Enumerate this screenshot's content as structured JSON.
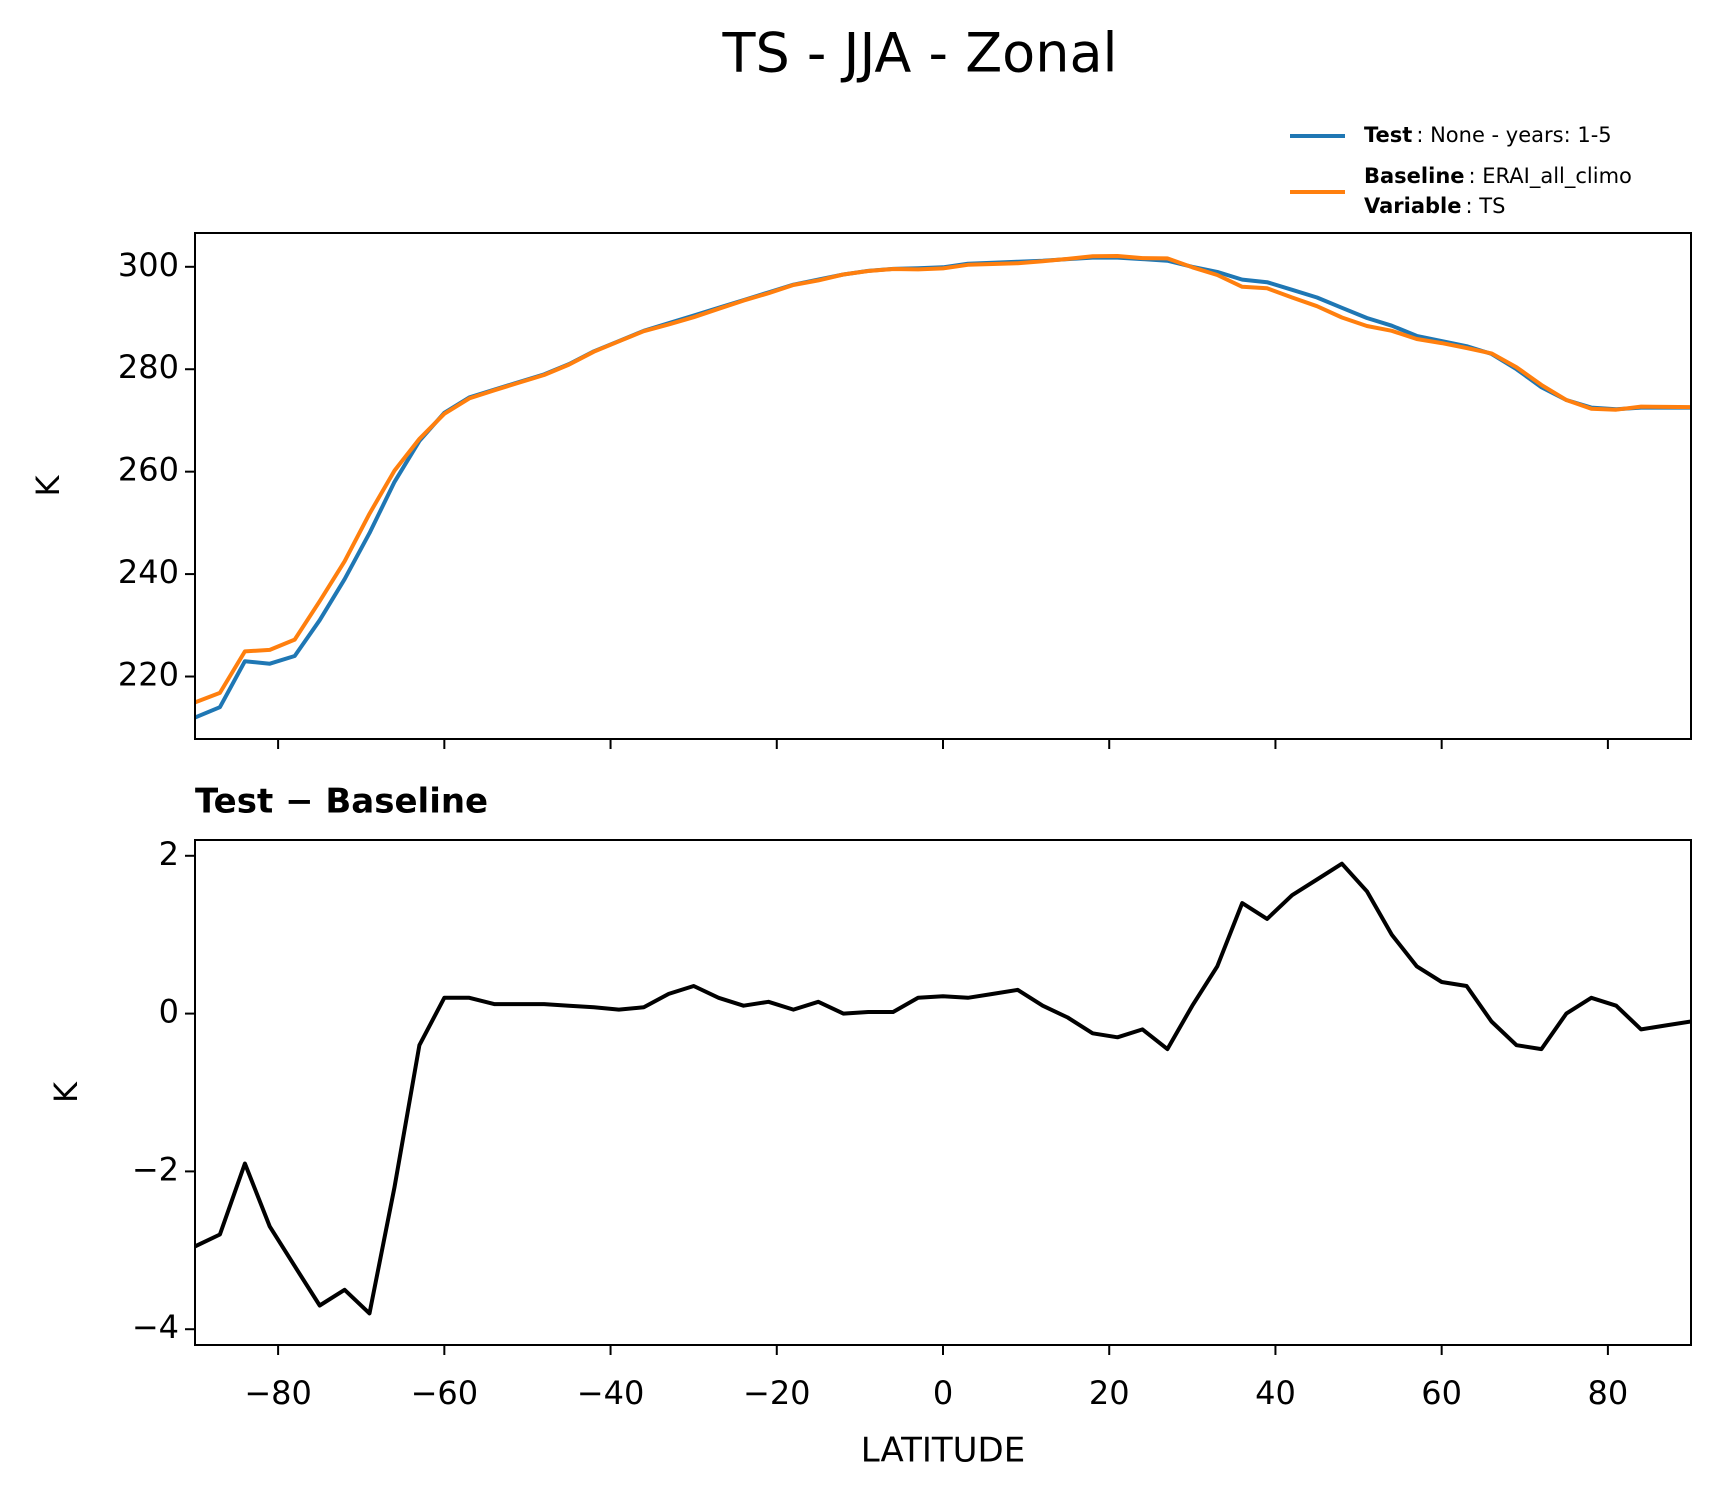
{
  "title": "TS - JJA - Zonal",
  "chart_data": [
    {
      "type": "line",
      "ylabel": "K",
      "x": [
        -90,
        -87,
        -84,
        -81,
        -78,
        -75,
        -72,
        -69,
        -66,
        -63,
        -60,
        -57,
        -54,
        -51,
        -48,
        -45,
        -42,
        -39,
        -36,
        -33,
        -30,
        -27,
        -24,
        -21,
        -18,
        -15,
        -12,
        -9,
        -6,
        -3,
        0,
        3,
        6,
        9,
        12,
        15,
        18,
        21,
        24,
        27,
        30,
        33,
        36,
        39,
        42,
        45,
        48,
        51,
        54,
        57,
        60,
        63,
        66,
        69,
        72,
        75,
        78,
        81,
        84,
        87,
        90
      ],
      "series": [
        {
          "name": "Test",
          "detail": ": None - years: 1-5",
          "color": "#1f77b4",
          "values": [
            212,
            214,
            223,
            222.5,
            224,
            231,
            239,
            248,
            258,
            266,
            271.5,
            274.5,
            276,
            277.5,
            279,
            281,
            283.5,
            285.5,
            287.5,
            289,
            290.5,
            292,
            293.5,
            295,
            296.5,
            297.5,
            298.5,
            299.2,
            299.6,
            299.7,
            299.9,
            300.6,
            300.8,
            301,
            301.2,
            301.5,
            301.8,
            301.8,
            301.5,
            301.2,
            300,
            299,
            297.5,
            297,
            295.5,
            294,
            292,
            290,
            288.5,
            286.5,
            285.5,
            284.5,
            283,
            280,
            276.5,
            274,
            272.5,
            272.2,
            272.5,
            272.5,
            272.5
          ]
        },
        {
          "name": "Baseline",
          "detail": ": ERAI_all_climo",
          "color": "#ff7f0e",
          "values": [
            214.95,
            216.8,
            224.9,
            225.2,
            227.2,
            234.7,
            242.5,
            251.8,
            260.2,
            266.4,
            271.3,
            274.3,
            275.88,
            277.38,
            278.88,
            280.9,
            283.42,
            285.45,
            287.42,
            288.75,
            290.15,
            291.8,
            293.4,
            294.85,
            296.45,
            297.35,
            298.5,
            299.18,
            299.58,
            299.5,
            299.68,
            300.4,
            300.55,
            300.7,
            301.1,
            301.55,
            302.05,
            302.1,
            301.7,
            301.65,
            299.9,
            298.4,
            296.1,
            295.8,
            294.0,
            292.3,
            290.1,
            288.45,
            287.5,
            285.9,
            285.1,
            284.15,
            283.1,
            280.4,
            276.95,
            274.0,
            272.3,
            272.1,
            272.7,
            272.65,
            272.6
          ]
        }
      ],
      "legend_extra": {
        "name": "Variable",
        "detail": ": TS"
      },
      "legend": "upper right",
      "xlim": [
        -90,
        90
      ],
      "xticks": [
        -80,
        -60,
        -40,
        -20,
        0,
        20,
        40,
        60,
        80
      ],
      "ylim": [
        207.8,
        306.6
      ],
      "yticks": [
        220,
        240,
        260,
        280,
        300
      ]
    },
    {
      "type": "line",
      "subtitle": "Test − Baseline",
      "xlabel": "LATITUDE",
      "ylabel": "K",
      "x": [
        -90,
        -87,
        -84,
        -81,
        -78,
        -75,
        -72,
        -69,
        -66,
        -63,
        -60,
        -57,
        -54,
        -51,
        -48,
        -45,
        -42,
        -39,
        -36,
        -33,
        -30,
        -27,
        -24,
        -21,
        -18,
        -15,
        -12,
        -9,
        -6,
        -3,
        0,
        3,
        6,
        9,
        12,
        15,
        18,
        21,
        24,
        27,
        30,
        33,
        36,
        39,
        42,
        45,
        48,
        51,
        54,
        57,
        60,
        63,
        66,
        69,
        72,
        75,
        78,
        81,
        84,
        87,
        90
      ],
      "series": [
        {
          "color": "#000000",
          "values": [
            -2.95,
            -2.8,
            -1.9,
            -2.7,
            -3.2,
            -3.7,
            -3.5,
            -3.8,
            -2.2,
            -0.4,
            0.2,
            0.2,
            0.12,
            0.12,
            0.12,
            0.1,
            0.08,
            0.05,
            0.08,
            0.25,
            0.35,
            0.2,
            0.1,
            0.15,
            0.05,
            0.15,
            0.0,
            0.02,
            0.02,
            0.2,
            0.22,
            0.2,
            0.25,
            0.3,
            0.1,
            -0.05,
            -0.25,
            -0.3,
            -0.2,
            -0.45,
            0.1,
            0.6,
            1.4,
            1.2,
            1.5,
            1.7,
            1.9,
            1.55,
            1.0,
            0.6,
            0.4,
            0.35,
            -0.1,
            -0.4,
            -0.45,
            0.0,
            0.2,
            0.1,
            -0.2,
            -0.15,
            -0.1
          ]
        }
      ],
      "xlim": [
        -90,
        90
      ],
      "xticks": [
        {
          "value": -80,
          "label": "−80"
        },
        {
          "value": -60,
          "label": "−60"
        },
        {
          "value": -40,
          "label": "−40"
        },
        {
          "value": -20,
          "label": "−20"
        },
        0,
        20,
        40,
        60,
        80
      ],
      "ylim": [
        -4.2,
        2.2
      ],
      "yticks": [
        {
          "value": -4,
          "label": "−4"
        },
        {
          "value": -2,
          "label": "−2"
        },
        0,
        2
      ]
    }
  ]
}
